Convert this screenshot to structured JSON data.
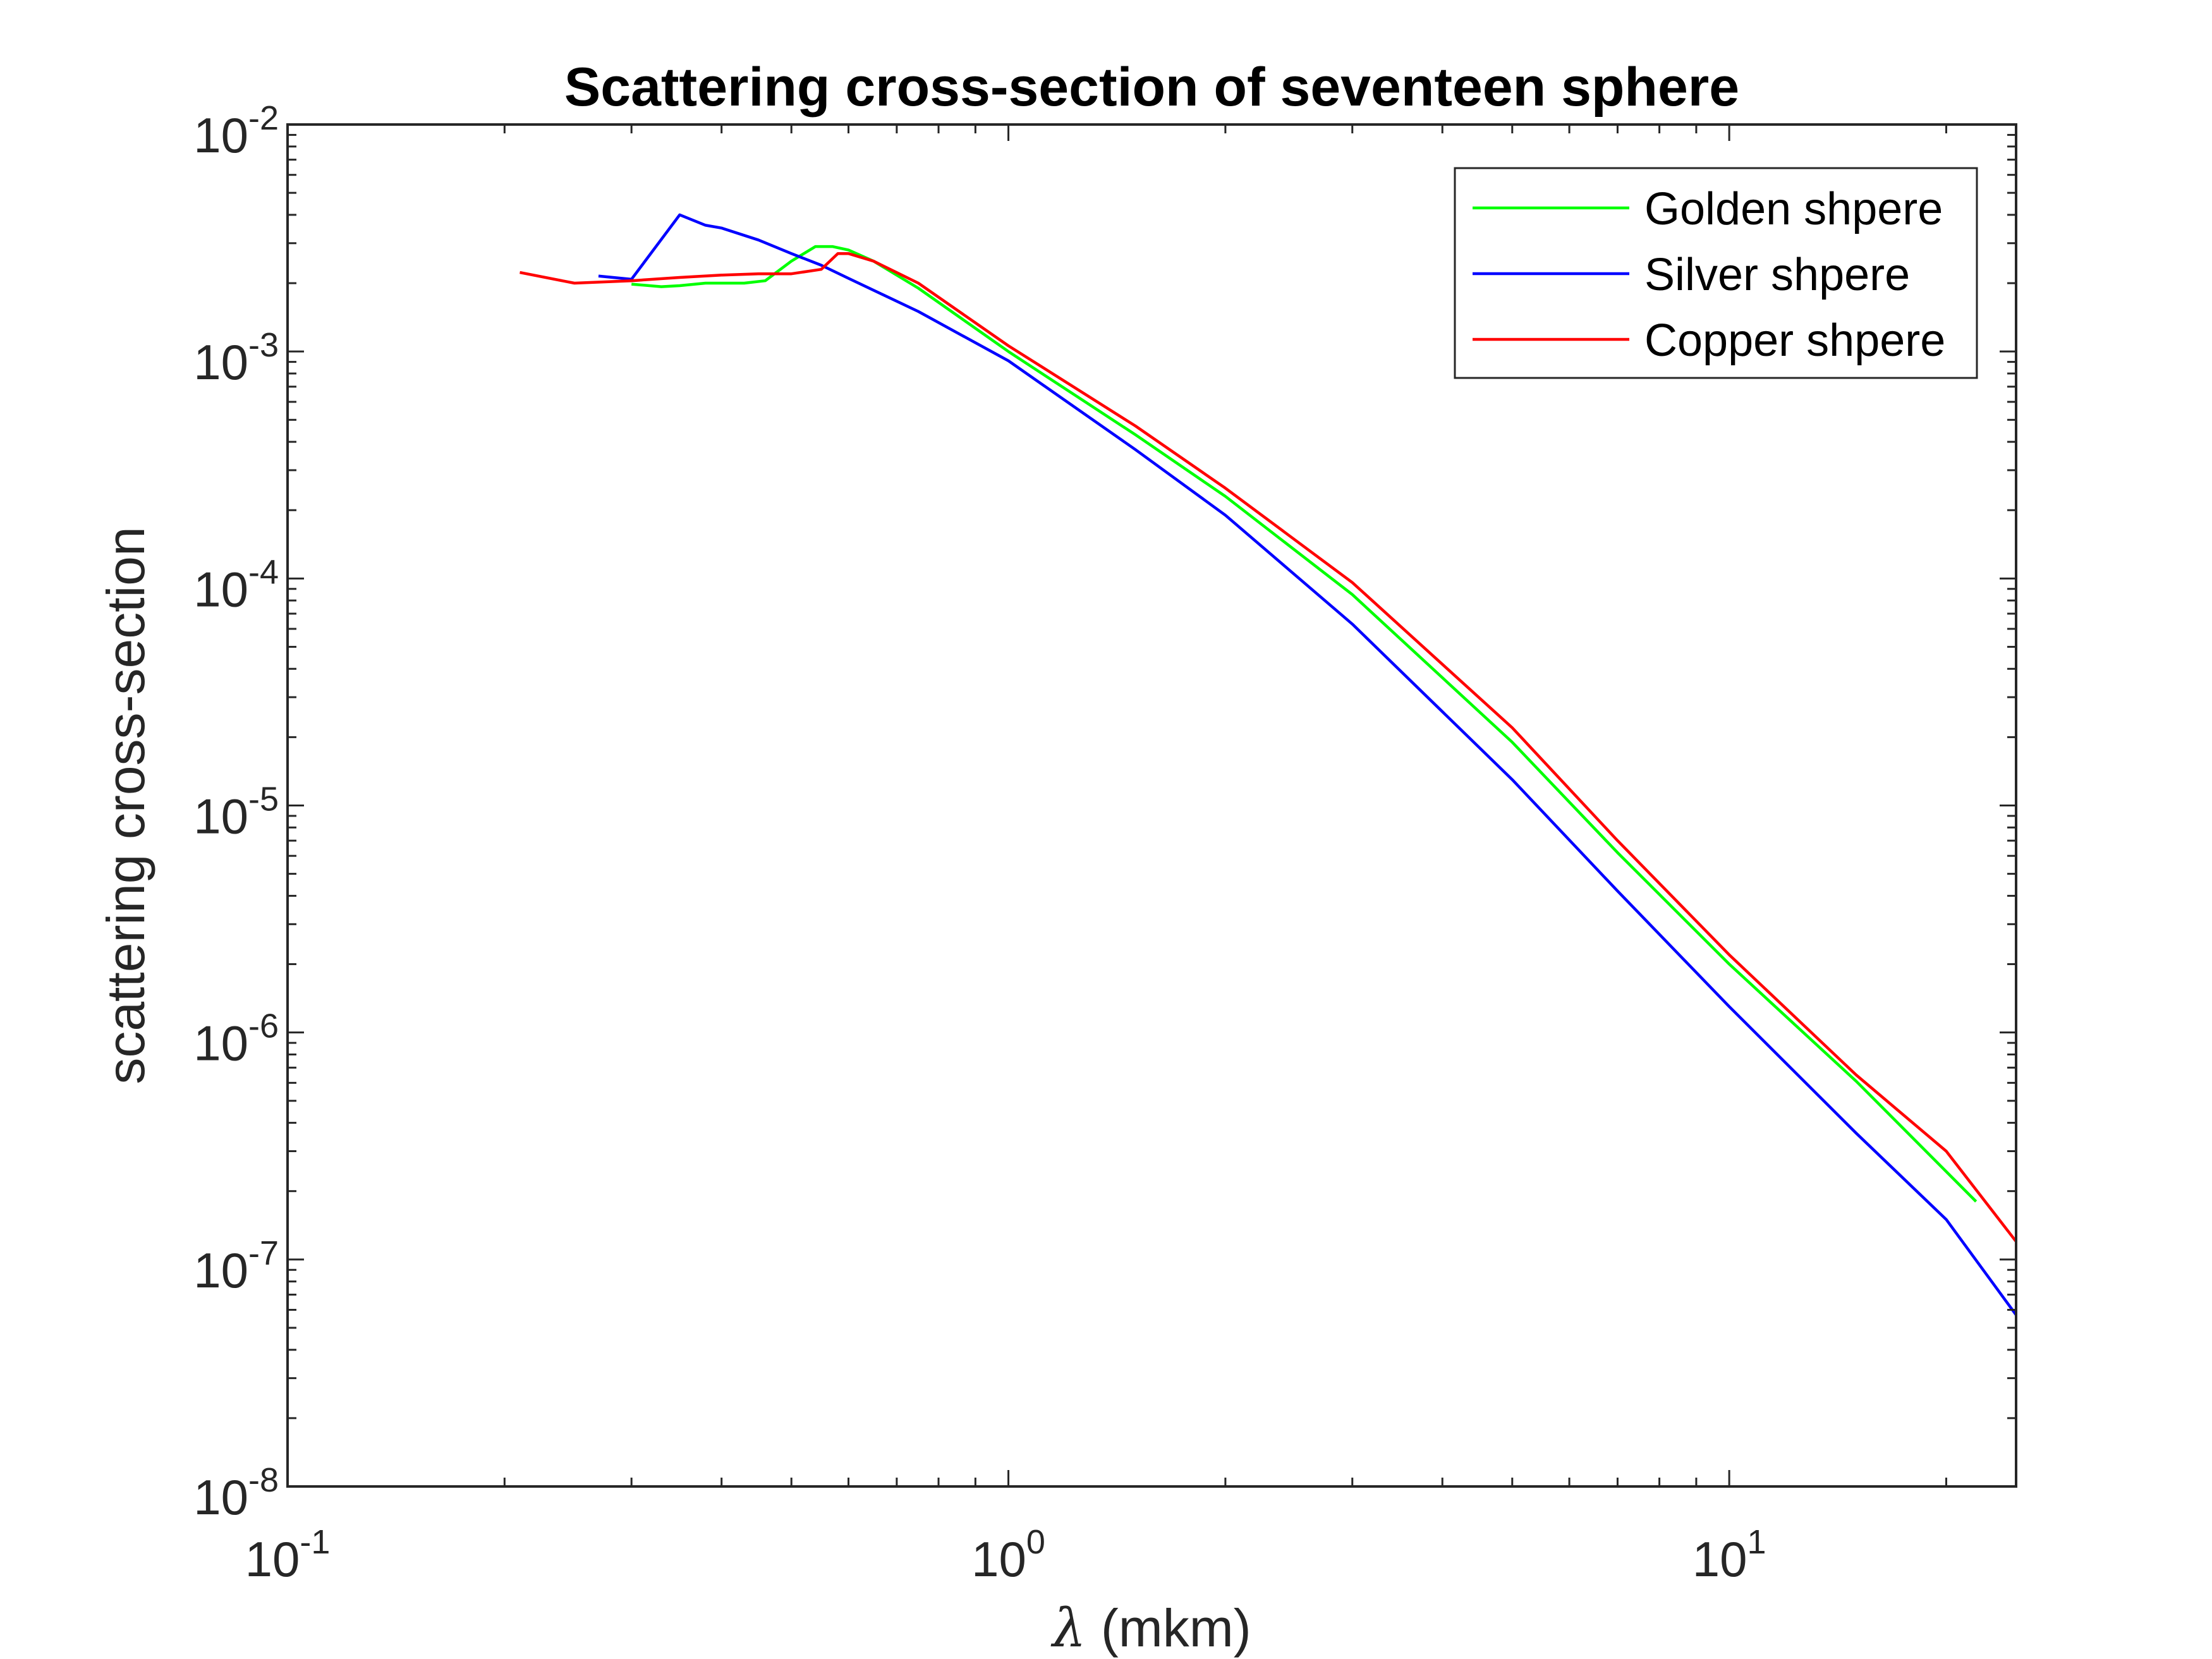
{
  "chart_data": {
    "type": "line",
    "title": "Scattering cross-section of seventeen sphere",
    "xlabel_symbol": "λ",
    "xlabel": " (mkm)",
    "ylabel": "scattering cross-section",
    "xscale": "log",
    "yscale": "log",
    "xlim": [
      0.1,
      25
    ],
    "ylim": [
      1e-08,
      0.01
    ],
    "xticks": [
      {
        "value": 0.1,
        "base": "10",
        "exp": "-1"
      },
      {
        "value": 1,
        "base": "10",
        "exp": "0"
      },
      {
        "value": 10,
        "base": "10",
        "exp": "1"
      }
    ],
    "yticks": [
      {
        "value": 1e-08,
        "base": "10",
        "exp": "-8"
      },
      {
        "value": 1e-07,
        "base": "10",
        "exp": "-7"
      },
      {
        "value": 1e-06,
        "base": "10",
        "exp": "-6"
      },
      {
        "value": 1e-05,
        "base": "10",
        "exp": "-5"
      },
      {
        "value": 0.0001,
        "base": "10",
        "exp": "-4"
      },
      {
        "value": 0.001,
        "base": "10",
        "exp": "-3"
      },
      {
        "value": 0.01,
        "base": "10",
        "exp": "-2"
      }
    ],
    "grid": false,
    "legend_position": "top-right",
    "series": [
      {
        "name": "Golden shpere",
        "color": "#00ff00",
        "x": [
          0.3,
          0.33,
          0.35,
          0.38,
          0.4,
          0.43,
          0.46,
          0.5,
          0.54,
          0.57,
          0.6,
          0.65,
          0.75,
          1.0,
          1.5,
          2.0,
          3.0,
          5.0,
          7.0,
          10.0,
          15.0,
          22.0
        ],
        "y": [
          0.00198,
          0.00193,
          0.00195,
          0.002,
          0.002,
          0.002,
          0.00205,
          0.0025,
          0.0029,
          0.0029,
          0.0028,
          0.0025,
          0.0019,
          0.001,
          0.00043,
          0.00023,
          8.5e-05,
          1.9e-05,
          6.2e-06,
          2e-06,
          6.1e-07,
          1.8e-07
        ]
      },
      {
        "name": "Silver shpere",
        "color": "#0000ff",
        "x": [
          0.27,
          0.3,
          0.35,
          0.38,
          0.4,
          0.45,
          0.5,
          0.55,
          0.6,
          0.75,
          1.0,
          1.5,
          2.0,
          3.0,
          5.0,
          7.0,
          10.0,
          15.0,
          20.0,
          25.0
        ],
        "y": [
          0.00215,
          0.00208,
          0.004,
          0.0036,
          0.0035,
          0.0031,
          0.0027,
          0.0024,
          0.0021,
          0.0015,
          0.00091,
          0.00037,
          0.00019,
          6.3e-05,
          1.3e-05,
          4.2e-06,
          1.3e-06,
          3.6e-07,
          1.5e-07,
          5.7e-08
        ]
      },
      {
        "name": "Copper shpere",
        "color": "#ff0000",
        "x": [
          0.21,
          0.25,
          0.3,
          0.35,
          0.4,
          0.45,
          0.5,
          0.55,
          0.58,
          0.6,
          0.65,
          0.75,
          1.0,
          1.5,
          2.0,
          3.0,
          5.0,
          7.0,
          10.0,
          15.0,
          20.0,
          25.0
        ],
        "y": [
          0.00223,
          0.002,
          0.00205,
          0.00212,
          0.00217,
          0.0022,
          0.0022,
          0.0023,
          0.0027,
          0.0027,
          0.0025,
          0.002,
          0.00106,
          0.00047,
          0.00025,
          9.6e-05,
          2.2e-05,
          7e-06,
          2.2e-06,
          6.5e-07,
          3e-07,
          1.2e-07
        ]
      }
    ]
  }
}
